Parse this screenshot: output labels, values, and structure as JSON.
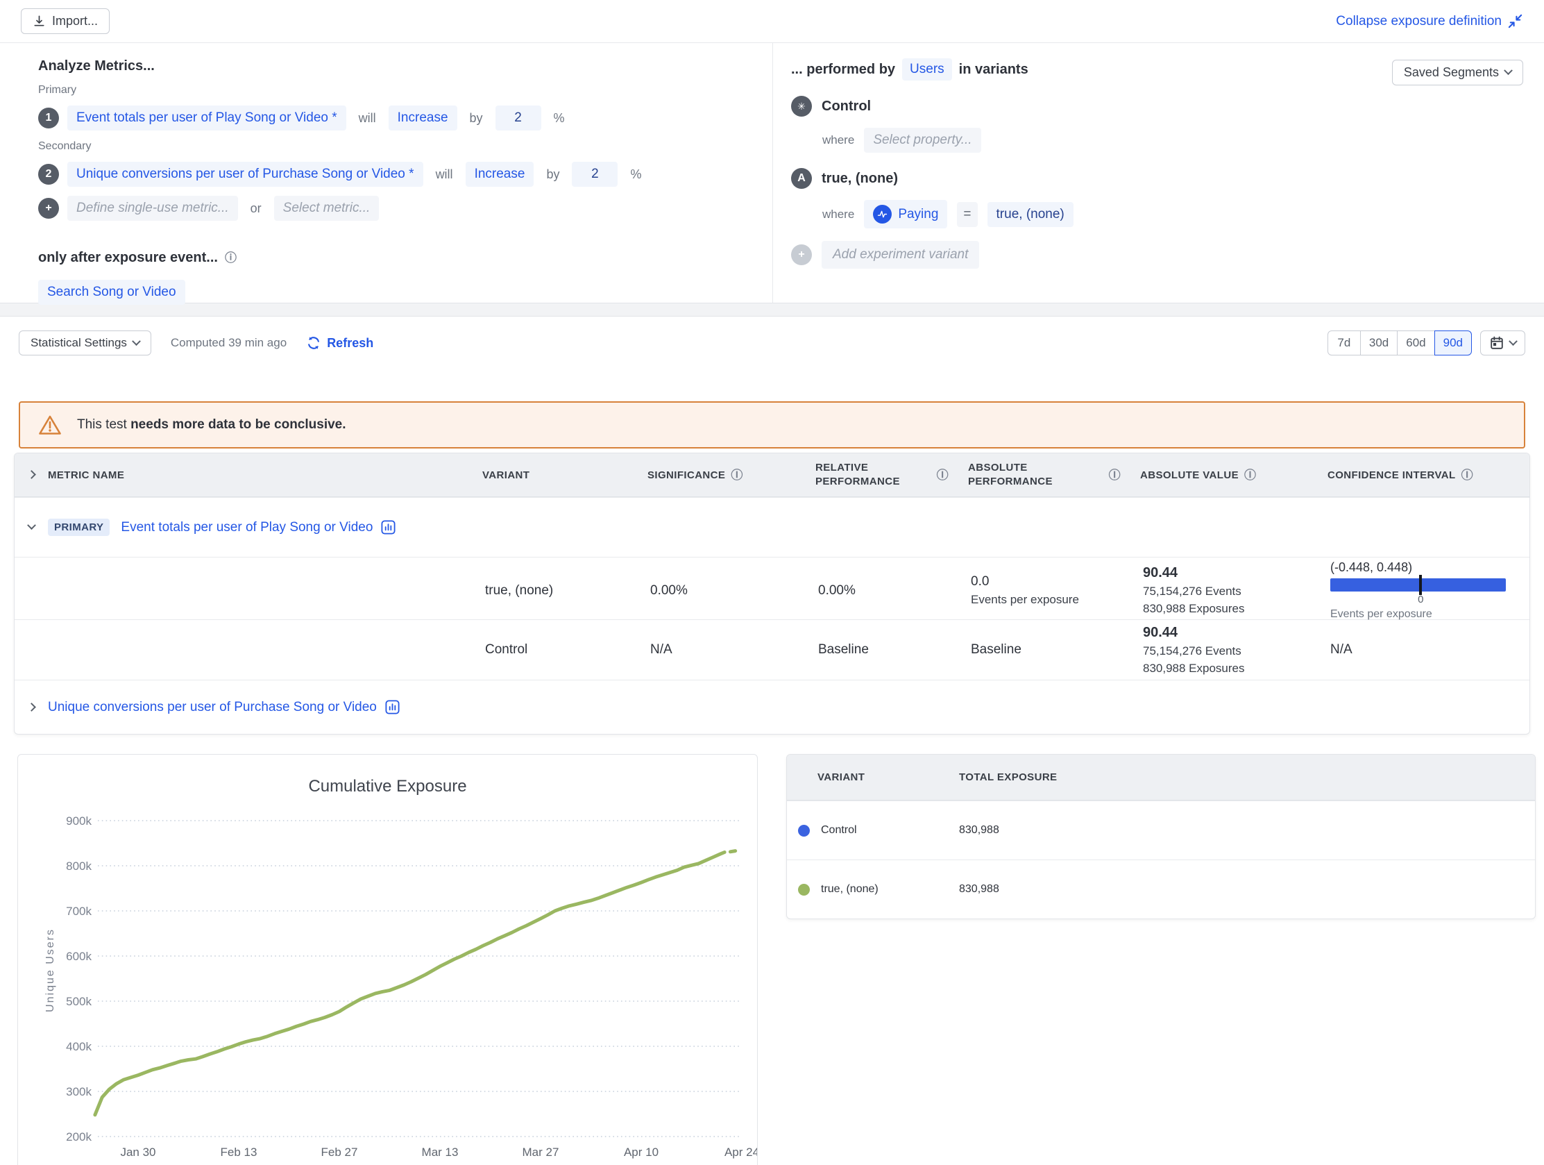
{
  "colors": {
    "accent_blue": "#2457e5",
    "ci_bar_blue": "#3660e0",
    "line_green": "#9ab761",
    "control_dot_blue": "#3b63e0",
    "warning_orange": "#d7823a"
  },
  "toolbar": {
    "import_label": "Import...",
    "collapse_label": "Collapse exposure definition"
  },
  "metrics_panel": {
    "title": "Analyze Metrics...",
    "primary_label": "Primary",
    "secondary_label": "Secondary",
    "rows": [
      {
        "index": "1",
        "metric": "Event totals per user of Play Song or Video *",
        "will": "will",
        "direction": "Increase",
        "by": "by",
        "value": "2",
        "unit": "%"
      },
      {
        "index": "2",
        "metric": "Unique conversions per user of Purchase Song or Video *",
        "will": "will",
        "direction": "Increase",
        "by": "by",
        "value": "2",
        "unit": "%"
      }
    ],
    "add_row": {
      "plus": "+",
      "define_placeholder": "Define single-use metric...",
      "or": "or",
      "select_placeholder": "Select metric..."
    },
    "exposure_title": "only after exposure event...",
    "exposure_event": "Search Song or Video"
  },
  "variants_panel": {
    "performed_by": "... performed by",
    "users_chip": "Users",
    "in_variants": "in variants",
    "saved_segments": "Saved Segments",
    "variants": [
      {
        "avatar": "✳",
        "name": "Control",
        "where_label": "where",
        "condition": {
          "placeholder": "Select property..."
        }
      },
      {
        "avatar": "A",
        "name": "true, (none)",
        "where_label": "where",
        "condition": {
          "property": "Paying",
          "operator": "=",
          "value": "true, (none)"
        }
      }
    ],
    "add_variant": {
      "plus": "+",
      "label": "Add experiment variant"
    }
  },
  "stats_bar": {
    "settings_label": "Statistical Settings",
    "computed": "Computed 39 min ago",
    "refresh_label": "Refresh",
    "ranges": [
      "7d",
      "30d",
      "60d",
      "90d"
    ],
    "active_range": "90d"
  },
  "warning": {
    "prefix": "This test ",
    "bold": "needs more data to be conclusive."
  },
  "results_table": {
    "columns": [
      "Metric Name",
      "Variant",
      "Significance",
      "Relative",
      "Performance",
      "Absolute",
      "Performance2",
      "Absolute Value",
      "Confidence Interval"
    ],
    "primary": {
      "badge": "PRIMARY",
      "name": "Event totals per user of Play Song or Video"
    },
    "rows": [
      {
        "variant": "true, (none)",
        "significance": "0.00%",
        "relative": "0.00%",
        "absolute": "0.0",
        "absolute_sub": "Events per exposure",
        "value": "90.44",
        "value_events": "75,154,276 Events",
        "value_exposures": "830,988 Exposures",
        "ci_label": "(-0.448, 0.448)",
        "ci_zero": "0",
        "ci_axis": "Events per exposure",
        "ci_tick_pct": 51.5
      },
      {
        "variant": "Control",
        "significance": "N/A",
        "relative": "Baseline",
        "absolute": "Baseline",
        "value": "90.44",
        "value_events": "75,154,276 Events",
        "value_exposures": "830,988 Exposures",
        "ci_label": "N/A"
      }
    ],
    "secondary": {
      "name": "Unique conversions per user of Purchase Song or Video"
    }
  },
  "chart_data": {
    "type": "line",
    "title": "Cumulative Exposure",
    "ylabel": "Unique Users",
    "grid": "dotted-horizontal",
    "legend_position": "none",
    "ylim_k": [
      200,
      900
    ],
    "y_ticks_k": [
      200,
      300,
      400,
      500,
      600,
      700,
      800,
      900
    ],
    "y_tick_labels": [
      "200k",
      "300k",
      "400k",
      "500k",
      "600k",
      "700k",
      "800k",
      "900k"
    ],
    "x_ticks": [
      {
        "label": "Jan 30",
        "day": 6
      },
      {
        "label": "Feb 13",
        "day": 20
      },
      {
        "label": "Feb 27",
        "day": 34
      },
      {
        "label": "Mar 13",
        "day": 48
      },
      {
        "label": "Mar 27",
        "day": 62
      },
      {
        "label": "Apr 10",
        "day": 76
      },
      {
        "label": "Apr 24",
        "day": 90
      }
    ],
    "series": [
      {
        "name": "true, (none)",
        "color": "#9ab761",
        "points_day_valuek": [
          [
            0,
            248
          ],
          [
            1,
            287
          ],
          [
            2,
            305
          ],
          [
            3,
            317
          ],
          [
            4,
            326
          ],
          [
            5,
            331
          ],
          [
            6,
            336
          ],
          [
            7,
            342
          ],
          [
            8,
            348
          ],
          [
            9,
            352
          ],
          [
            10,
            357
          ],
          [
            11,
            362
          ],
          [
            12,
            367
          ],
          [
            13,
            370
          ],
          [
            14,
            372
          ],
          [
            15,
            377
          ],
          [
            16,
            383
          ],
          [
            17,
            388
          ],
          [
            18,
            394
          ],
          [
            19,
            399
          ],
          [
            20,
            405
          ],
          [
            21,
            410
          ],
          [
            22,
            414
          ],
          [
            23,
            417
          ],
          [
            24,
            422
          ],
          [
            25,
            428
          ],
          [
            26,
            433
          ],
          [
            27,
            438
          ],
          [
            28,
            444
          ],
          [
            29,
            449
          ],
          [
            30,
            455
          ],
          [
            31,
            459
          ],
          [
            32,
            464
          ],
          [
            33,
            470
          ],
          [
            34,
            477
          ],
          [
            35,
            487
          ],
          [
            36,
            496
          ],
          [
            37,
            505
          ],
          [
            38,
            511
          ],
          [
            39,
            517
          ],
          [
            40,
            521
          ],
          [
            41,
            524
          ],
          [
            42,
            530
          ],
          [
            43,
            536
          ],
          [
            44,
            543
          ],
          [
            45,
            551
          ],
          [
            46,
            559
          ],
          [
            47,
            568
          ],
          [
            48,
            577
          ],
          [
            49,
            585
          ],
          [
            50,
            593
          ],
          [
            51,
            600
          ],
          [
            52,
            608
          ],
          [
            53,
            615
          ],
          [
            54,
            623
          ],
          [
            55,
            630
          ],
          [
            56,
            638
          ],
          [
            57,
            645
          ],
          [
            58,
            652
          ],
          [
            59,
            660
          ],
          [
            60,
            667
          ],
          [
            61,
            675
          ],
          [
            62,
            683
          ],
          [
            63,
            691
          ],
          [
            64,
            700
          ],
          [
            65,
            706
          ],
          [
            66,
            711
          ],
          [
            67,
            715
          ],
          [
            68,
            719
          ],
          [
            69,
            723
          ],
          [
            70,
            728
          ],
          [
            71,
            734
          ],
          [
            72,
            740
          ],
          [
            73,
            746
          ],
          [
            74,
            752
          ],
          [
            75,
            757
          ],
          [
            76,
            763
          ],
          [
            77,
            769
          ],
          [
            78,
            775
          ],
          [
            79,
            780
          ],
          [
            80,
            785
          ],
          [
            81,
            790
          ],
          [
            82,
            797
          ],
          [
            83,
            801
          ],
          [
            84,
            805
          ],
          [
            85,
            812
          ],
          [
            86,
            819
          ],
          [
            87,
            826
          ],
          [
            87.6,
            830
          ]
        ]
      }
    ],
    "trailing_dash_day_valuek": [
      [
        88.4,
        831
      ],
      [
        89.1,
        833
      ]
    ]
  },
  "exposure_table": {
    "columns": [
      "Variant",
      "Total Exposure"
    ],
    "rows": [
      {
        "color": "#3b63e0",
        "name": "Control",
        "exposure": "830,988"
      },
      {
        "color": "#9ab761",
        "name": "true, (none)",
        "exposure": "830,988"
      }
    ]
  }
}
